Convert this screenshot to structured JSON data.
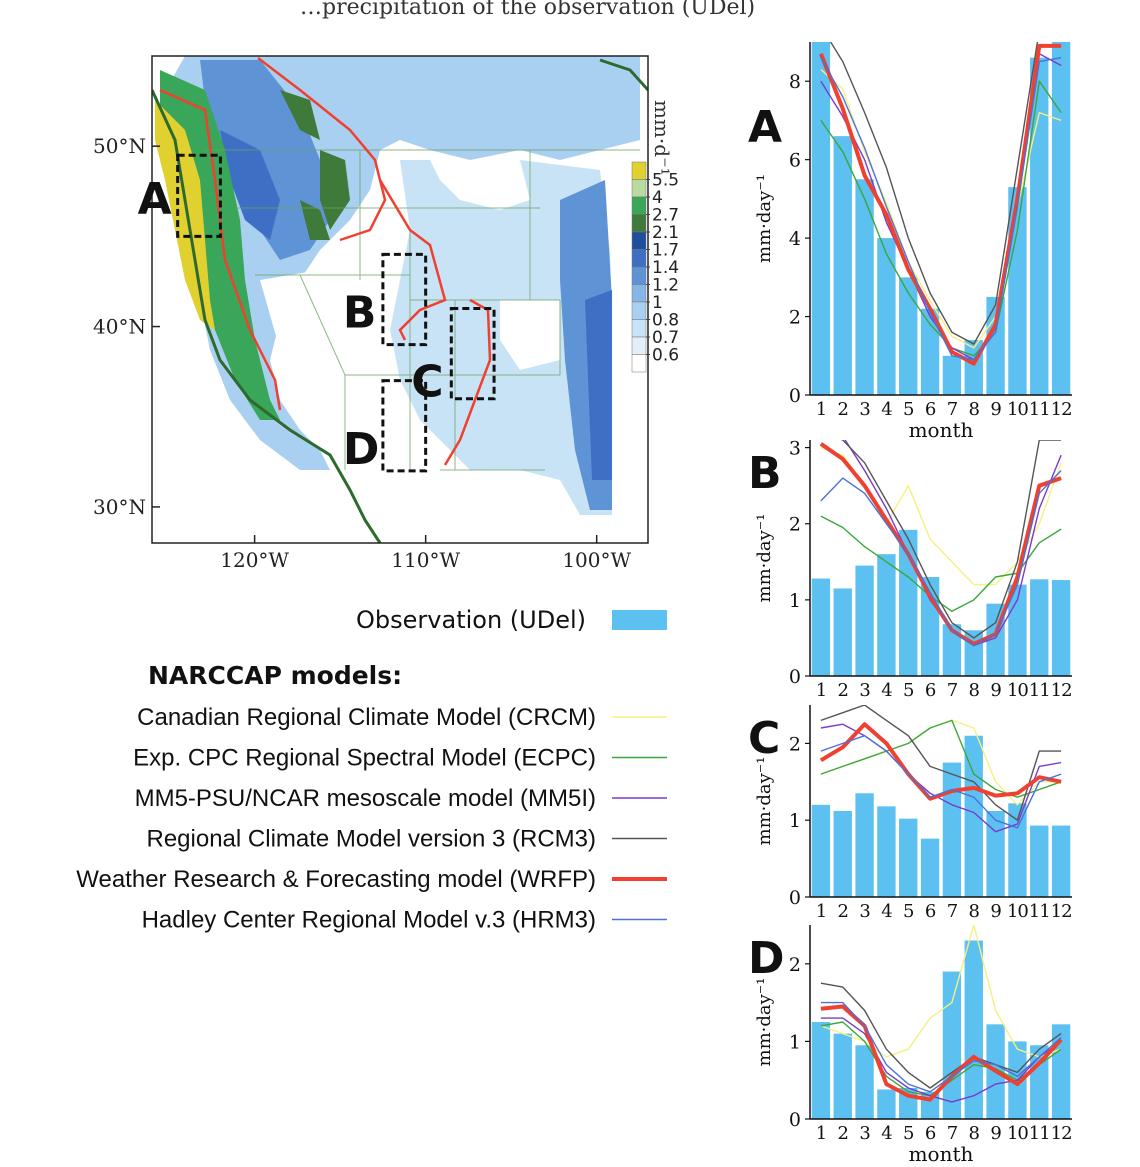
{
  "header_text": "…precipitation of the observation (UDel)",
  "map": {
    "units": "mm·d⁻¹",
    "lat_labels": [
      "50°N",
      "40°N",
      "30°N"
    ],
    "lat_values": [
      50,
      40,
      30
    ],
    "lon_labels": [
      "120°W",
      "110°W",
      "100°W"
    ],
    "lon_values": [
      -120,
      -110,
      -100
    ],
    "colorbar": {
      "labels": [
        "5.5",
        "4",
        "2.7",
        "2.1",
        "1.7",
        "1.4",
        "1.2",
        "1",
        "0.8",
        "0.7",
        "0.6"
      ],
      "colors": [
        "#e0d030",
        "#b8dba0",
        "#3aa65a",
        "#3f7a3a",
        "#1f4f9c",
        "#3d70c4",
        "#5e93d6",
        "#86b6e6",
        "#a9d0f0",
        "#c9e3f6",
        "#e2eef8",
        "#ffffff"
      ]
    },
    "regions": [
      {
        "label": "A",
        "lon_range": [
          -124.5,
          -122
        ],
        "lat_range": [
          45,
          49.5
        ]
      },
      {
        "label": "B",
        "lon_range": [
          -112.5,
          -110
        ],
        "lat_range": [
          39,
          44
        ]
      },
      {
        "label": "C",
        "lon_range": [
          -108.5,
          -106
        ],
        "lat_range": [
          36,
          41
        ]
      },
      {
        "label": "D",
        "lon_range": [
          -112.5,
          -110
        ],
        "lat_range": [
          32,
          37
        ]
      }
    ]
  },
  "legend": {
    "observation": {
      "label": "Observation (UDel)",
      "color": "#5cc0f0"
    },
    "models_title": "NARCCAP models:",
    "models": [
      {
        "label": "Canadian Regional Climate Model (CRCM)",
        "color": "#f5f080"
      },
      {
        "label": "Exp. CPC Regional Spectral Model (ECPC)",
        "color": "#3aa83a"
      },
      {
        "label": "MM5-PSU/NCAR mesoscale model (MM5I)",
        "color": "#7a3ccc"
      },
      {
        "label": "Regional Climate Model version 3 (RCM3)",
        "color": "#555555"
      },
      {
        "label": "Weather Research & Forecasting model (WRFP)",
        "color": "#ef4030"
      },
      {
        "label": "Hadley Center Regional Model v.3 (HRM3)",
        "color": "#4a72d8"
      }
    ]
  },
  "chart_data": [
    {
      "type": "bar",
      "panel": "A",
      "xlabel": "month",
      "ylabel": "mm·day⁻¹",
      "ylim": [
        0,
        9
      ],
      "yticks": [
        0,
        2,
        4,
        6,
        8
      ],
      "categories": [
        "1",
        "2",
        "3",
        "4",
        "5",
        "6",
        "7",
        "8",
        "9",
        "10",
        "11",
        "12"
      ],
      "observation": [
        9.0,
        6.6,
        5.5,
        4.0,
        3.0,
        2.2,
        1.0,
        1.4,
        2.5,
        5.3,
        8.6,
        9.2
      ],
      "series": [
        {
          "model": "CRCM",
          "values": [
            8.3,
            7.8,
            6.2,
            4.9,
            3.4,
            2.4,
            1.5,
            1.2,
            2.0,
            4.8,
            7.2,
            7.0
          ]
        },
        {
          "model": "ECPC",
          "values": [
            7.0,
            6.2,
            5.0,
            3.6,
            2.6,
            1.8,
            1.2,
            1.0,
            1.6,
            4.2,
            8.0,
            7.2
          ]
        },
        {
          "model": "MM5I",
          "values": [
            8.0,
            7.1,
            6.0,
            4.4,
            3.2,
            2.0,
            1.2,
            0.9,
            1.7,
            4.9,
            8.7,
            8.4
          ]
        },
        {
          "model": "RCM3",
          "values": [
            9.4,
            8.5,
            7.2,
            5.8,
            4.0,
            2.6,
            1.6,
            1.3,
            2.3,
            5.8,
            9.3,
            9.4
          ]
        },
        {
          "model": "WRFP",
          "values": [
            8.7,
            7.3,
            5.6,
            4.6,
            3.2,
            2.2,
            1.1,
            0.8,
            1.8,
            5.0,
            8.9,
            8.9
          ]
        },
        {
          "model": "HRM3",
          "values": [
            8.6,
            7.6,
            6.3,
            4.8,
            3.4,
            2.1,
            1.0,
            0.9,
            1.6,
            4.8,
            8.5,
            8.6
          ]
        }
      ]
    },
    {
      "type": "bar",
      "panel": "B",
      "xlabel": "",
      "ylabel": "mm·day⁻¹",
      "ylim": [
        0,
        3.1
      ],
      "yticks": [
        0,
        1,
        2,
        3
      ],
      "categories": [
        "1",
        "2",
        "3",
        "4",
        "5",
        "6",
        "7",
        "8",
        "9",
        "10",
        "11",
        "12"
      ],
      "observation": [
        1.28,
        1.15,
        1.45,
        1.6,
        1.92,
        1.3,
        0.68,
        0.6,
        0.95,
        1.2,
        1.27,
        1.26
      ],
      "series": [
        {
          "model": "CRCM",
          "values": [
            3.0,
            2.9,
            2.5,
            2.0,
            2.5,
            1.8,
            1.5,
            1.2,
            1.2,
            1.5,
            2.0,
            2.8
          ]
        },
        {
          "model": "ECPC",
          "values": [
            2.1,
            1.95,
            1.7,
            1.5,
            1.3,
            1.05,
            0.85,
            1.0,
            1.3,
            1.35,
            1.75,
            1.93
          ]
        },
        {
          "model": "MM5I",
          "values": [
            3.15,
            3.15,
            2.7,
            2.2,
            1.6,
            1.0,
            0.6,
            0.4,
            0.5,
            1.0,
            2.2,
            2.9
          ]
        },
        {
          "model": "RCM3",
          "values": [
            3.2,
            3.1,
            2.8,
            2.3,
            1.8,
            1.2,
            0.7,
            0.5,
            0.7,
            1.5,
            3.1,
            3.1
          ]
        },
        {
          "model": "WRFP",
          "values": [
            3.05,
            2.85,
            2.5,
            2.05,
            1.6,
            1.05,
            0.6,
            0.42,
            0.55,
            1.3,
            2.5,
            2.6
          ]
        },
        {
          "model": "HRM3",
          "values": [
            2.3,
            2.6,
            2.4,
            2.0,
            1.6,
            1.1,
            0.6,
            0.4,
            0.55,
            1.2,
            2.4,
            2.7
          ]
        }
      ]
    },
    {
      "type": "bar",
      "panel": "C",
      "xlabel": "",
      "ylabel": "mm·day⁻¹",
      "ylim": [
        0,
        2.5
      ],
      "yticks": [
        0,
        1,
        2
      ],
      "categories": [
        "1",
        "2",
        "3",
        "4",
        "5",
        "6",
        "7",
        "8",
        "9",
        "10",
        "11",
        "12"
      ],
      "observation": [
        1.2,
        1.12,
        1.35,
        1.18,
        1.02,
        0.76,
        1.75,
        2.1,
        1.12,
        1.22,
        0.93,
        0.93
      ],
      "series": [
        {
          "model": "CRCM",
          "values": [
            1.6,
            1.7,
            1.8,
            1.9,
            2.0,
            2.2,
            2.3,
            2.2,
            1.5,
            1.2,
            1.5,
            1.5
          ]
        },
        {
          "model": "ECPC",
          "values": [
            1.6,
            1.7,
            1.8,
            1.9,
            2.0,
            2.2,
            2.3,
            1.6,
            1.4,
            1.3,
            1.4,
            1.5
          ]
        },
        {
          "model": "MM5I",
          "values": [
            2.2,
            2.25,
            2.1,
            1.9,
            1.6,
            1.35,
            1.2,
            1.1,
            0.85,
            0.95,
            1.7,
            1.75
          ]
        },
        {
          "model": "RCM3",
          "values": [
            2.3,
            2.4,
            2.5,
            2.3,
            2.1,
            1.7,
            1.6,
            1.5,
            1.2,
            1.0,
            1.9,
            1.9
          ]
        },
        {
          "model": "WRFP",
          "values": [
            1.78,
            1.95,
            2.25,
            2.0,
            1.6,
            1.28,
            1.38,
            1.42,
            1.32,
            1.35,
            1.56,
            1.5
          ]
        },
        {
          "model": "HRM3",
          "values": [
            1.9,
            2.0,
            2.1,
            1.9,
            1.6,
            1.3,
            1.4,
            1.3,
            1.0,
            0.9,
            1.5,
            1.6
          ]
        }
      ]
    },
    {
      "type": "bar",
      "panel": "D",
      "xlabel": "month",
      "ylabel": "mm·day⁻¹",
      "ylim": [
        0,
        2.5
      ],
      "yticks": [
        0,
        1,
        2
      ],
      "categories": [
        "1",
        "2",
        "3",
        "4",
        "5",
        "6",
        "7",
        "8",
        "9",
        "10",
        "11",
        "12"
      ],
      "observation": [
        1.25,
        1.1,
        0.95,
        0.38,
        0.4,
        0.35,
        1.9,
        2.3,
        1.22,
        1.0,
        0.95,
        1.22
      ],
      "series": [
        {
          "model": "CRCM",
          "values": [
            1.2,
            1.1,
            1.0,
            0.8,
            0.9,
            1.3,
            1.5,
            2.5,
            1.4,
            0.9,
            0.8,
            0.9
          ]
        },
        {
          "model": "ECPC",
          "values": [
            1.2,
            1.25,
            1.0,
            0.55,
            0.35,
            0.3,
            0.5,
            0.7,
            0.65,
            0.5,
            0.7,
            0.9
          ]
        },
        {
          "model": "MM5I",
          "values": [
            1.3,
            1.3,
            1.1,
            0.6,
            0.4,
            0.3,
            0.22,
            0.3,
            0.45,
            0.5,
            0.8,
            1.0
          ]
        },
        {
          "model": "RCM3",
          "values": [
            1.75,
            1.7,
            1.4,
            0.9,
            0.6,
            0.4,
            0.6,
            0.8,
            0.7,
            0.6,
            0.9,
            1.1
          ]
        },
        {
          "model": "WRFP",
          "values": [
            1.42,
            1.45,
            1.2,
            0.45,
            0.3,
            0.25,
            0.55,
            0.8,
            0.62,
            0.45,
            0.72,
            1.02
          ]
        },
        {
          "model": "HRM3",
          "values": [
            1.5,
            1.5,
            1.2,
            0.7,
            0.45,
            0.35,
            0.55,
            0.75,
            0.7,
            0.55,
            0.8,
            1.05
          ]
        }
      ]
    }
  ]
}
